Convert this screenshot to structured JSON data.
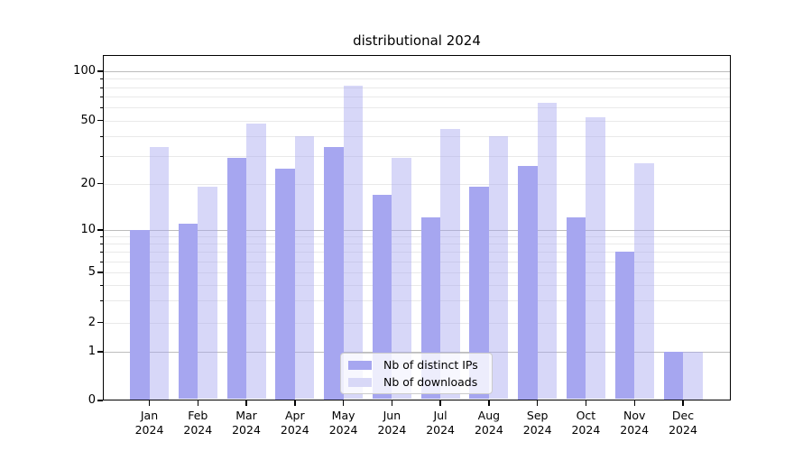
{
  "title": "distributional 2024",
  "chart_data": {
    "type": "bar",
    "title": "distributional 2024",
    "categories": [
      "Jan",
      "Feb",
      "Mar",
      "Apr",
      "May",
      "Jun",
      "Jul",
      "Aug",
      "Sep",
      "Oct",
      "Nov",
      "Dec"
    ],
    "year": "2024",
    "series": [
      {
        "name": "Nb of distinct IPs",
        "color": "#a6a6f0",
        "values": [
          10,
          11,
          29,
          25,
          34,
          17,
          12,
          19,
          26,
          12,
          7,
          1
        ]
      },
      {
        "name": "Nb of downloads",
        "color": "rgba(166,166,240,0.45)",
        "values": [
          34,
          19,
          48,
          40,
          82,
          29,
          44,
          40,
          64,
          52,
          27,
          1
        ]
      }
    ],
    "ylabel": "",
    "xlabel": "",
    "ytick_labels": [
      "0",
      "1",
      "2",
      "5",
      "10",
      "20",
      "50",
      "100"
    ],
    "yticks": [
      0,
      1,
      2,
      5,
      10,
      20,
      50,
      100
    ],
    "major_gridline_values": [
      1,
      10,
      100
    ],
    "minor_gridline_values": [
      2,
      3,
      4,
      5,
      6,
      7,
      8,
      9,
      20,
      30,
      40,
      50,
      60,
      70,
      80,
      90
    ],
    "ylim": [
      0,
      126
    ],
    "grid": true,
    "legend_position": "lower center",
    "scale": {
      "type": "symlog-like",
      "note": "linear from 0 to 1, log-like above; anchors = [value, fraction-of-plot-height-from-bottom]",
      "anchors": [
        [
          0,
          0.0
        ],
        [
          1,
          0.141
        ],
        [
          2,
          0.2259
        ],
        [
          5,
          0.3708
        ],
        [
          10,
          0.4935
        ],
        [
          20,
          0.6279
        ],
        [
          50,
          0.8107
        ],
        [
          100,
          0.953
        ]
      ]
    }
  },
  "legend": {
    "items": [
      {
        "label": "Nb of distinct IPs",
        "color": "#a6a6f0"
      },
      {
        "label": "Nb of downloads",
        "color": "#d8d8f7"
      }
    ]
  }
}
